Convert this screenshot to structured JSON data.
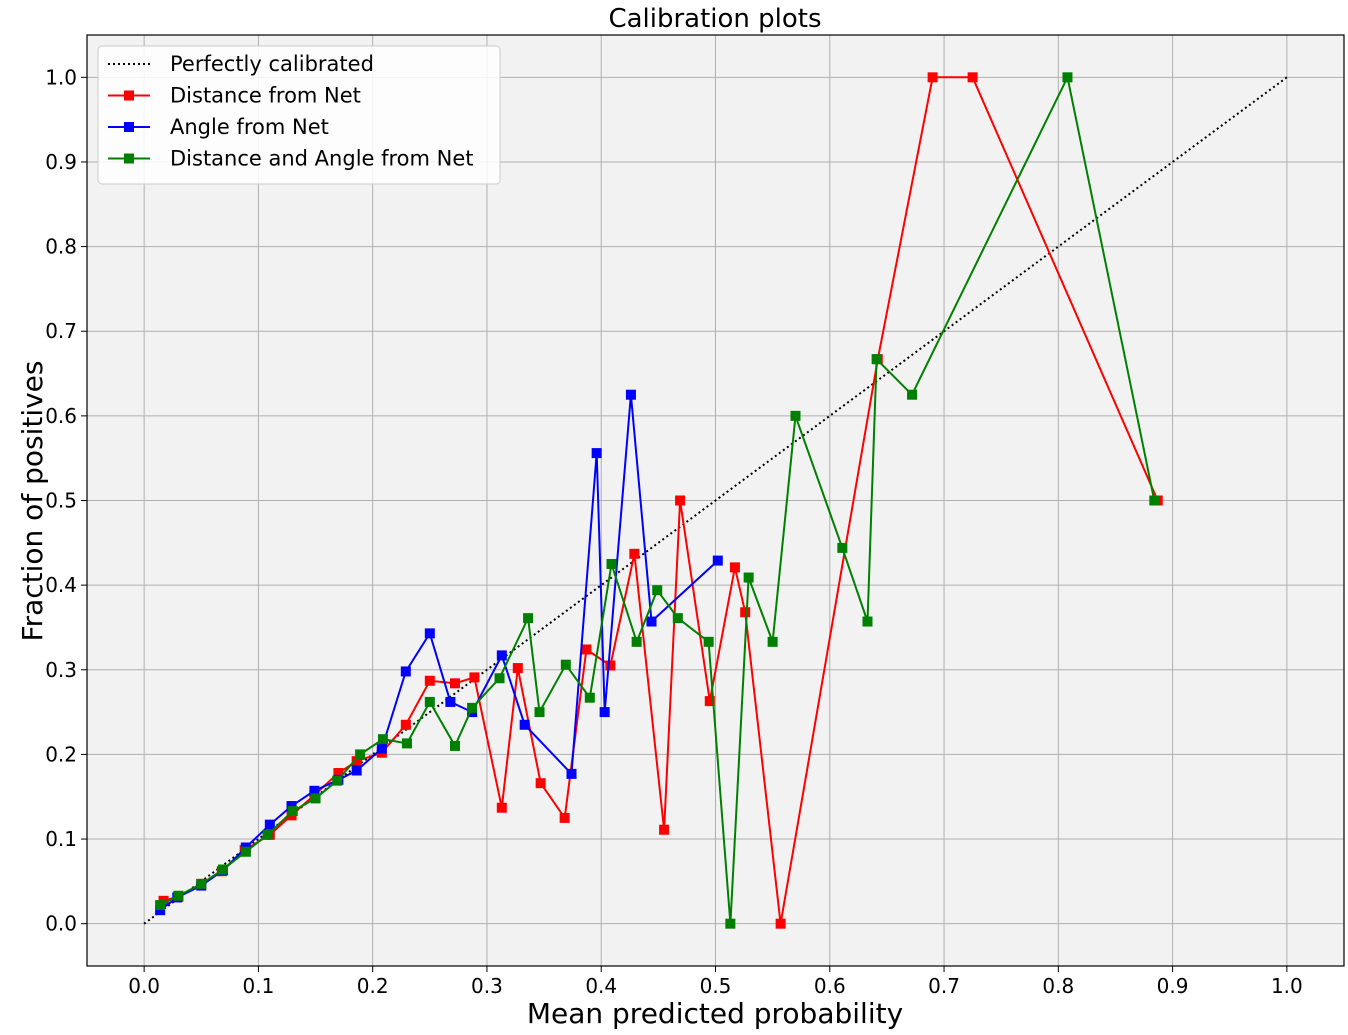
{
  "chart_data": {
    "type": "line",
    "title": "Calibration plots",
    "xlabel": "Mean predicted probability",
    "ylabel": "Fraction of positives",
    "xlim": [
      -0.05,
      1.05
    ],
    "ylim": [
      -0.05,
      1.05
    ],
    "xticks": [
      "0.0",
      "0.1",
      "0.2",
      "0.3",
      "0.4",
      "0.5",
      "0.6",
      "0.7",
      "0.8",
      "0.9",
      "1.0"
    ],
    "yticks": [
      "0.0",
      "0.1",
      "0.2",
      "0.3",
      "0.4",
      "0.5",
      "0.6",
      "0.7",
      "0.8",
      "0.9",
      "1.0"
    ],
    "grid": true,
    "legend_position": "upper-left",
    "background_color": "#f2f2f2",
    "series": [
      {
        "name": "Perfectly calibrated",
        "color": "#000000",
        "style": "dotted",
        "marker": "none",
        "points": [
          [
            0.0,
            0.0
          ],
          [
            1.0,
            1.0
          ]
        ]
      },
      {
        "name": "Distance from Net",
        "color": "#ff0000",
        "style": "solid",
        "marker": "square",
        "points": [
          [
            0.017,
            0.027
          ],
          [
            0.03,
            0.032
          ],
          [
            0.05,
            0.047
          ],
          [
            0.068,
            0.062
          ],
          [
            0.088,
            0.087
          ],
          [
            0.11,
            0.105
          ],
          [
            0.129,
            0.128
          ],
          [
            0.149,
            0.152
          ],
          [
            0.17,
            0.178
          ],
          [
            0.186,
            0.192
          ],
          [
            0.208,
            0.202
          ],
          [
            0.229,
            0.235
          ],
          [
            0.25,
            0.287
          ],
          [
            0.272,
            0.284
          ],
          [
            0.289,
            0.291
          ],
          [
            0.313,
            0.137
          ],
          [
            0.327,
            0.302
          ],
          [
            0.347,
            0.166
          ],
          [
            0.368,
            0.125
          ],
          [
            0.387,
            0.324
          ],
          [
            0.408,
            0.305
          ],
          [
            0.429,
            0.437
          ],
          [
            0.455,
            0.111
          ],
          [
            0.469,
            0.5
          ],
          [
            0.495,
            0.263
          ],
          [
            0.517,
            0.421
          ],
          [
            0.526,
            0.368
          ],
          [
            0.557,
            0.0
          ],
          [
            0.642,
            0.667
          ],
          [
            0.69,
            1.0
          ],
          [
            0.725,
            1.0
          ],
          [
            0.887,
            0.5
          ]
        ]
      },
      {
        "name": "Angle from Net",
        "color": "#0000ff",
        "style": "solid",
        "marker": "square",
        "points": [
          [
            0.014,
            0.016
          ],
          [
            0.029,
            0.031
          ],
          [
            0.05,
            0.045
          ],
          [
            0.069,
            0.063
          ],
          [
            0.089,
            0.09
          ],
          [
            0.11,
            0.117
          ],
          [
            0.129,
            0.139
          ],
          [
            0.149,
            0.157
          ],
          [
            0.17,
            0.17
          ],
          [
            0.186,
            0.181
          ],
          [
            0.208,
            0.207
          ],
          [
            0.229,
            0.298
          ],
          [
            0.25,
            0.343
          ],
          [
            0.268,
            0.262
          ],
          [
            0.287,
            0.25
          ],
          [
            0.313,
            0.317
          ],
          [
            0.333,
            0.235
          ],
          [
            0.374,
            0.177
          ],
          [
            0.396,
            0.556
          ],
          [
            0.403,
            0.25
          ],
          [
            0.426,
            0.625
          ],
          [
            0.444,
            0.357
          ],
          [
            0.502,
            0.429
          ]
        ]
      },
      {
        "name": "Distance and Angle from Net",
        "color": "#008000",
        "style": "solid",
        "marker": "square",
        "points": [
          [
            0.014,
            0.022
          ],
          [
            0.03,
            0.033
          ],
          [
            0.05,
            0.047
          ],
          [
            0.069,
            0.064
          ],
          [
            0.089,
            0.085
          ],
          [
            0.108,
            0.105
          ],
          [
            0.13,
            0.133
          ],
          [
            0.15,
            0.148
          ],
          [
            0.169,
            0.169
          ],
          [
            0.189,
            0.2
          ],
          [
            0.209,
            0.218
          ],
          [
            0.23,
            0.213
          ],
          [
            0.25,
            0.262
          ],
          [
            0.272,
            0.21
          ],
          [
            0.287,
            0.255
          ],
          [
            0.311,
            0.29
          ],
          [
            0.336,
            0.361
          ],
          [
            0.346,
            0.25
          ],
          [
            0.369,
            0.306
          ],
          [
            0.39,
            0.267
          ],
          [
            0.409,
            0.425
          ],
          [
            0.431,
            0.333
          ],
          [
            0.449,
            0.394
          ],
          [
            0.467,
            0.361
          ],
          [
            0.494,
            0.333
          ],
          [
            0.513,
            0.0
          ],
          [
            0.529,
            0.409
          ],
          [
            0.55,
            0.333
          ],
          [
            0.57,
            0.6
          ],
          [
            0.611,
            0.444
          ],
          [
            0.633,
            0.357
          ],
          [
            0.641,
            0.667
          ],
          [
            0.672,
            0.625
          ],
          [
            0.808,
            1.0
          ],
          [
            0.884,
            0.5
          ]
        ]
      }
    ]
  }
}
